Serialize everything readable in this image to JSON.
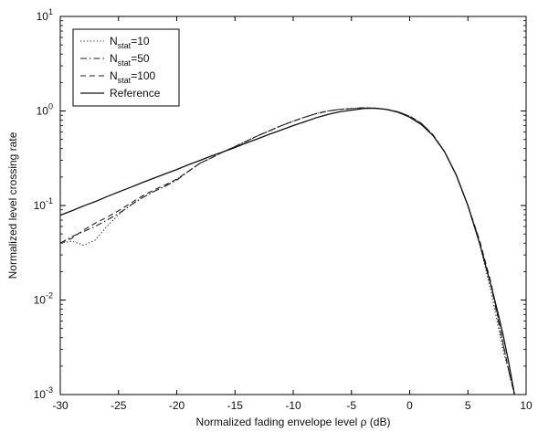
{
  "chart_data": {
    "type": "line",
    "title": "",
    "xlabel": "Normalized fading envelope level ρ (dB)",
    "ylabel": "Normalized level crossing rate",
    "xlim": [
      -30,
      10
    ],
    "ylim": [
      0.001,
      10
    ],
    "y_scale": "log",
    "x_ticks": [
      {
        "value": -30,
        "label": "-30"
      },
      {
        "value": -25,
        "label": "-25"
      },
      {
        "value": -20,
        "label": "-20"
      },
      {
        "value": -15,
        "label": "-15"
      },
      {
        "value": -10,
        "label": "-10"
      },
      {
        "value": -5,
        "label": "-5"
      },
      {
        "value": 0,
        "label": "0"
      },
      {
        "value": 5,
        "label": "5"
      },
      {
        "value": 10,
        "label": "10"
      }
    ],
    "y_ticks": [
      {
        "value": 0.001,
        "base": "10",
        "exp": "-3"
      },
      {
        "value": 0.01,
        "base": "10",
        "exp": "-2"
      },
      {
        "value": 0.1,
        "base": "10",
        "exp": "-1"
      },
      {
        "value": 1,
        "base": "10",
        "exp": "0"
      },
      {
        "value": 10,
        "base": "10",
        "exp": "1"
      }
    ],
    "grid": false,
    "legend_position": "top-left",
    "series": [
      {
        "label_main": "N",
        "label_sub": "stat",
        "label_tail": "=10",
        "style": "dotted",
        "color": "#222222",
        "x": [
          -30,
          -29,
          -28,
          -27,
          -26,
          -25,
          -24,
          -23,
          -22,
          -21,
          -20,
          -19,
          -18,
          -17,
          -16,
          -15,
          -14,
          -13,
          -12,
          -11,
          -10,
          -9,
          -8,
          -7,
          -6,
          -5,
          -4,
          -3,
          -2,
          -1,
          0,
          1,
          2,
          3,
          4,
          5,
          6,
          7,
          7.5,
          8,
          8.5,
          9
        ],
        "y": [
          0.04,
          0.042,
          0.038,
          0.043,
          0.06,
          0.08,
          0.1,
          0.12,
          0.14,
          0.16,
          0.19,
          0.23,
          0.28,
          0.32,
          0.37,
          0.42,
          0.48,
          0.55,
          0.62,
          0.7,
          0.78,
          0.86,
          0.94,
          1.0,
          1.04,
          1.06,
          1.08,
          1.07,
          1.04,
          0.98,
          0.88,
          0.74,
          0.56,
          0.37,
          0.21,
          0.1,
          0.04,
          0.012,
          0.006,
          0.003,
          0.0018,
          0.001
        ]
      },
      {
        "label_main": "N",
        "label_sub": "stat",
        "label_tail": "=50",
        "style": "dashdot",
        "color": "#222222",
        "x": [
          -30,
          -29,
          -28,
          -27,
          -26,
          -25,
          -24,
          -23,
          -22,
          -21,
          -20,
          -19,
          -18,
          -17,
          -16,
          -15,
          -14,
          -13,
          -12,
          -11,
          -10,
          -9,
          -8,
          -7,
          -6,
          -5,
          -4,
          -3,
          -2,
          -1,
          0,
          1,
          2,
          3,
          4,
          5,
          6,
          7,
          7.5,
          8,
          8.5,
          9
        ],
        "y": [
          0.04,
          0.047,
          0.053,
          0.06,
          0.07,
          0.082,
          0.1,
          0.12,
          0.14,
          0.16,
          0.185,
          0.23,
          0.28,
          0.32,
          0.37,
          0.42,
          0.48,
          0.55,
          0.62,
          0.7,
          0.78,
          0.86,
          0.94,
          1.0,
          1.04,
          1.06,
          1.08,
          1.07,
          1.04,
          0.98,
          0.88,
          0.74,
          0.56,
          0.37,
          0.21,
          0.1,
          0.042,
          0.014,
          0.007,
          0.0035,
          0.0018,
          0.001
        ]
      },
      {
        "label_main": "N",
        "label_sub": "stat",
        "label_tail": "=100",
        "style": "dashed",
        "color": "#222222",
        "x": [
          -30,
          -29,
          -28,
          -27,
          -26,
          -25,
          -24,
          -23,
          -22,
          -21,
          -20,
          -19,
          -18,
          -17,
          -16,
          -15,
          -14,
          -13,
          -12,
          -11,
          -10,
          -9,
          -8,
          -7,
          -6,
          -5,
          -4,
          -3,
          -2,
          -1,
          0,
          1,
          2,
          3,
          4,
          5,
          6,
          7,
          7.5,
          8,
          8.5,
          9
        ],
        "y": [
          0.04,
          0.045,
          0.055,
          0.065,
          0.075,
          0.088,
          0.105,
          0.125,
          0.145,
          0.165,
          0.19,
          0.23,
          0.28,
          0.32,
          0.37,
          0.42,
          0.48,
          0.55,
          0.62,
          0.7,
          0.78,
          0.86,
          0.94,
          1.0,
          1.04,
          1.06,
          1.08,
          1.07,
          1.04,
          0.98,
          0.88,
          0.74,
          0.56,
          0.37,
          0.21,
          0.1,
          0.043,
          0.015,
          0.0075,
          0.0036,
          0.0018,
          0.001
        ]
      },
      {
        "label_main": "Reference",
        "label_sub": "",
        "label_tail": "",
        "style": "solid",
        "color": "#111111",
        "x": [
          -30,
          -29,
          -28,
          -27,
          -26,
          -25,
          -24,
          -23,
          -22,
          -21,
          -20,
          -19,
          -18,
          -17,
          -16,
          -15,
          -14,
          -13,
          -12,
          -11,
          -10,
          -9,
          -8,
          -7,
          -6,
          -5,
          -4,
          -3,
          -2,
          -1,
          0,
          1,
          2,
          3,
          4,
          5,
          6,
          7,
          7.5,
          8,
          8.5,
          9
        ],
        "y": [
          0.079,
          0.088,
          0.099,
          0.11,
          0.124,
          0.139,
          0.155,
          0.174,
          0.194,
          0.216,
          0.24,
          0.27,
          0.3,
          0.335,
          0.37,
          0.41,
          0.46,
          0.51,
          0.57,
          0.63,
          0.7,
          0.77,
          0.85,
          0.92,
          0.98,
          1.02,
          1.06,
          1.07,
          1.04,
          0.97,
          0.86,
          0.72,
          0.55,
          0.37,
          0.21,
          0.1,
          0.04,
          0.014,
          0.008,
          0.0044,
          0.0022,
          0.001
        ]
      }
    ]
  }
}
